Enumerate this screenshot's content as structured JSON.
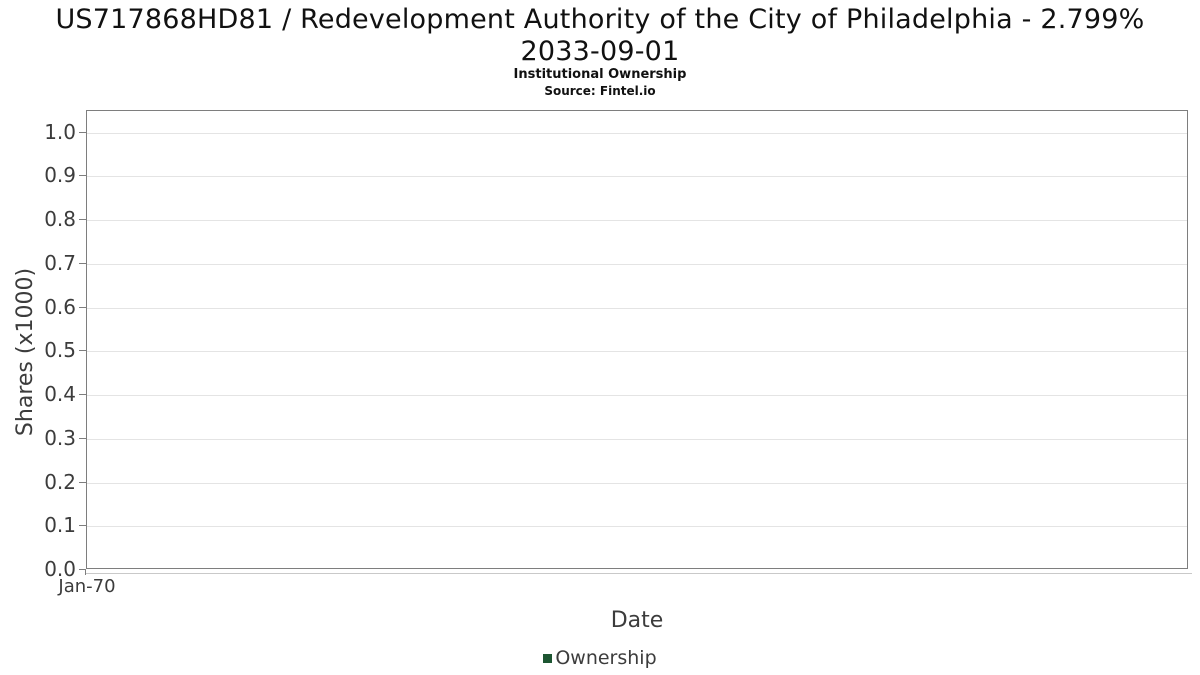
{
  "header": {
    "title_line1": "US717868HD81 / Redevelopment Authority of the City of Philadelphia - 2.799%",
    "title_line2": "2033-09-01",
    "subtitle": "Institutional Ownership",
    "source": "Source: Fintel.io"
  },
  "axes": {
    "y_label": "Shares (x1000)",
    "x_label": "Date",
    "x_tick_labels": [
      "Jan-70"
    ]
  },
  "legend": {
    "items": [
      {
        "label": "Ownership",
        "color": "#1d5632"
      }
    ]
  },
  "colors": {
    "background": "#ffffff",
    "plot_border": "#7e7e7e",
    "gridline": "#e4e4e4",
    "axis_text": "#3c3c3c",
    "title_text": "#111111",
    "legend_green": "#1d5632"
  },
  "chart_data": {
    "type": "line",
    "title": "US717868HD81 / Redevelopment Authority of the City of Philadelphia - 2.799% 2033-09-01",
    "subtitle": "Institutional Ownership",
    "source": "Source: Fintel.io",
    "xlabel": "Date",
    "ylabel": "Shares (x1000)",
    "ylim": [
      0.0,
      1.05
    ],
    "yticks": [
      0.0,
      0.1,
      0.2,
      0.3,
      0.4,
      0.5,
      0.6,
      0.7,
      0.8,
      0.9,
      1.0
    ],
    "xticks": [
      "Jan-70"
    ],
    "grid": "horizontal",
    "legend_position": "bottom-center",
    "series": [
      {
        "name": "Ownership",
        "color": "#1d5632",
        "x": [],
        "values": []
      }
    ]
  }
}
